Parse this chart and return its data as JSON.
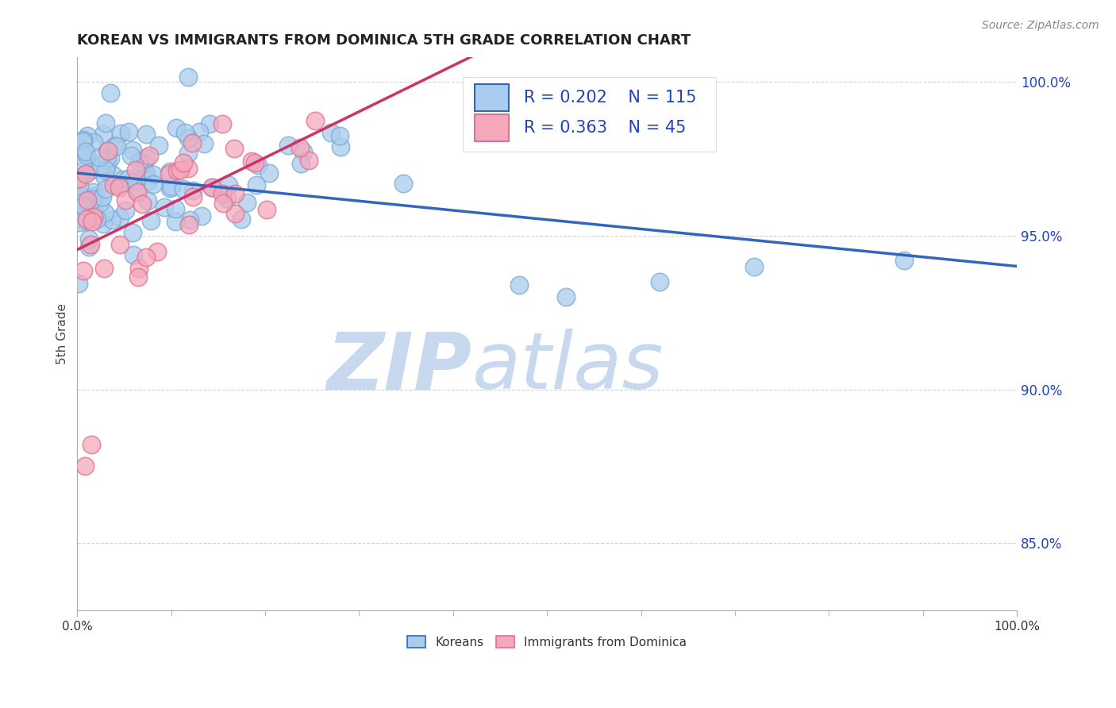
{
  "title": "KOREAN VS IMMIGRANTS FROM DOMINICA 5TH GRADE CORRELATION CHART",
  "source_text": "Source: ZipAtlas.com",
  "ylabel": "5th Grade",
  "x_min": 0.0,
  "x_max": 1.0,
  "y_min": 0.828,
  "y_max": 1.008,
  "y_ticks": [
    0.85,
    0.9,
    0.95,
    1.0
  ],
  "y_tick_labels": [
    "85.0%",
    "90.0%",
    "95.0%",
    "100.0%"
  ],
  "korean_R": 0.202,
  "korean_N": 115,
  "dominica_R": 0.363,
  "dominica_N": 45,
  "korean_color": "#aaccee",
  "dominica_color": "#f5a8bc",
  "korean_edge_color": "#7aaad4",
  "dominica_edge_color": "#e07090",
  "korean_line_color": "#3366bb",
  "dominica_line_color": "#cc3366",
  "watermark_zip": "ZIP",
  "watermark_atlas": "atlas",
  "watermark_color_zip": "#c8d8ee",
  "watermark_color_atlas": "#c8d8ee",
  "title_color": "#222222",
  "title_fontsize": 13,
  "legend_fontsize": 15,
  "legend_color": "#2244bb",
  "axis_label_color": "#444444",
  "tick_color": "#2244bb",
  "source_color": "#888888"
}
